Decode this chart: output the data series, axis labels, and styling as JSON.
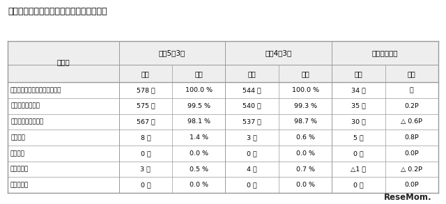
{
  "title": "【特別支援学校中学部卒業者の進路状況】",
  "col0_header": "区　分",
  "header1": [
    "令和5年3月",
    "令和4年3月",
    "対前年度増減"
  ],
  "header2": [
    "人数",
    "割合",
    "人数",
    "割合",
    "人数",
    "割合"
  ],
  "rows": [
    [
      "特別支援学校中学部卒業者総数",
      "578 人",
      "100.0 %",
      "544 人",
      "100.0 %",
      "34 人",
      "－"
    ],
    [
      "高等学校等進学者",
      "575 人",
      "99.5 %",
      "540 人",
      "99.3 %",
      "35 人",
      "0.2P"
    ],
    [
      "特別支援学校高等部",
      "567 人",
      "98.1 %",
      "537 人",
      "98.7 %",
      "30 人",
      "△ 0.6P"
    ],
    [
      "高等学校",
      "8 人",
      "1.4 %",
      "3 人",
      "0.6 %",
      "5 人",
      "0.8P"
    ],
    [
      "就職者等",
      "0 人",
      "0.0 %",
      "0 人",
      "0.0 %",
      "0 人",
      "0.0P"
    ],
    [
      "その他の者",
      "3 人",
      "0.5 %",
      "4 人",
      "0.7 %",
      "△1 人",
      "△ 0.2P"
    ],
    [
      "不詳・死亡",
      "0 人",
      "0.0 %",
      "0 人",
      "0.0 %",
      "0 人",
      "0.0P"
    ]
  ],
  "indent_rows": [
    1,
    2,
    3
  ],
  "background_color": "#ffffff",
  "border_color": "#999999",
  "header_bg": "#eeeeee",
  "text_color": "#000000",
  "resemom_text": "ReseMom."
}
